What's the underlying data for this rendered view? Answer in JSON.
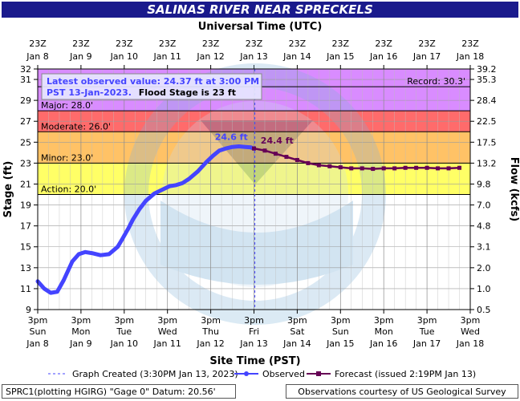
{
  "chart_data": {
    "type": "line",
    "title": "SALINAS RIVER NEAR SPRECKELS",
    "top_axis_label": "Universal Time (UTC)",
    "xlabel": "Site Time (PST)",
    "ylabel": "Stage (ft)",
    "y2label": "Flow (kcfs)",
    "ylim": [
      9,
      32
    ],
    "xlim_days": [
      0,
      10
    ],
    "grid": true,
    "legend_placement": "bottom",
    "y_ticks": [
      9,
      11,
      13,
      15,
      17,
      19,
      21,
      23,
      25,
      27,
      29,
      31,
      32
    ],
    "y_tick_labels": [
      "9",
      "11",
      "13",
      "15",
      "17",
      "19",
      "21",
      "23",
      "25",
      "27",
      "29",
      "31",
      "32"
    ],
    "flow_ticks": [
      {
        "stage": 9,
        "label": "0.5"
      },
      {
        "stage": 11,
        "label": "1.0"
      },
      {
        "stage": 13,
        "label": "2.0"
      },
      {
        "stage": 15,
        "label": "3.1"
      },
      {
        "stage": 17,
        "label": "4.8"
      },
      {
        "stage": 19,
        "label": "7.0"
      },
      {
        "stage": 21,
        "label": "9.8"
      },
      {
        "stage": 23,
        "label": "13.2"
      },
      {
        "stage": 25,
        "label": "17.5"
      },
      {
        "stage": 27,
        "label": "22.5"
      },
      {
        "stage": 29,
        "label": "28.4"
      },
      {
        "stage": 31,
        "label": "35.3"
      },
      {
        "stage": 32,
        "label": "39.2"
      }
    ],
    "bottom_ticks": [
      {
        "day": 0,
        "line1": "3pm",
        "line2": "Sun",
        "line3": "Jan 8"
      },
      {
        "day": 1,
        "line1": "3pm",
        "line2": "Mon",
        "line3": "Jan 9"
      },
      {
        "day": 2,
        "line1": "3pm",
        "line2": "Tue",
        "line3": "Jan 10"
      },
      {
        "day": 3,
        "line1": "3pm",
        "line2": "Wed",
        "line3": "Jan 11"
      },
      {
        "day": 4,
        "line1": "3pm",
        "line2": "Thu",
        "line3": "Jan 12"
      },
      {
        "day": 5,
        "line1": "3pm",
        "line2": "Fri",
        "line3": "Jan 13"
      },
      {
        "day": 6,
        "line1": "3pm",
        "line2": "Sat",
        "line3": "Jan 14"
      },
      {
        "day": 7,
        "line1": "3pm",
        "line2": "Sun",
        "line3": "Jan 15"
      },
      {
        "day": 8,
        "line1": "3pm",
        "line2": "Mon",
        "line3": "Jan 16"
      },
      {
        "day": 9,
        "line1": "3pm",
        "line2": "Tue",
        "line3": "Jan 17"
      },
      {
        "day": 10,
        "line1": "3pm",
        "line2": "Wed",
        "line3": "Jan 18"
      }
    ],
    "top_ticks": [
      {
        "day": 0,
        "line1": "23Z",
        "line2": "Jan 8"
      },
      {
        "day": 1,
        "line1": "23Z",
        "line2": "Jan 9"
      },
      {
        "day": 2,
        "line1": "23Z",
        "line2": "Jan 10"
      },
      {
        "day": 3,
        "line1": "23Z",
        "line2": "Jan 11"
      },
      {
        "day": 4,
        "line1": "23Z",
        "line2": "Jan 12"
      },
      {
        "day": 5,
        "line1": "23Z",
        "line2": "Jan 13"
      },
      {
        "day": 6,
        "line1": "23Z",
        "line2": "Jan 14"
      },
      {
        "day": 7,
        "line1": "23Z",
        "line2": "Jan 15"
      },
      {
        "day": 8,
        "line1": "23Z",
        "line2": "Jan 16"
      },
      {
        "day": 9,
        "line1": "23Z",
        "line2": "Jan 17"
      },
      {
        "day": 10,
        "line1": "23Z",
        "line2": "Jan 18"
      }
    ],
    "flood_bands": [
      {
        "name": "Action",
        "label": "Action: 20.0'",
        "from": 20,
        "to": 23,
        "color": "#ffff66"
      },
      {
        "name": "Minor",
        "label": "Minor: 23.0'",
        "from": 23,
        "to": 26,
        "color": "#ffc266"
      },
      {
        "name": "Moderate",
        "label": "Moderate: 26.0'",
        "from": 26,
        "to": 28,
        "color": "#ff6b6b"
      },
      {
        "name": "Major",
        "label": "Major: 28.0'",
        "from": 28,
        "to": 32,
        "color": "#d98cff"
      }
    ],
    "record": {
      "label": "Record: 30.3'",
      "value": 30.3
    },
    "info_box": {
      "line1": "Latest observed value: 24.37 ft at 3:00 PM",
      "line2_a": "PST 13-Jan-2023.",
      "line2_b": "Flood Stage is 23 ft"
    },
    "graph_created_day": 5.02,
    "annotations": [
      {
        "text": "24.6 ft",
        "day": 4.93,
        "value": 24.6,
        "color": "#4444ff"
      },
      {
        "text": "24.4 ft",
        "day": 5.08,
        "value": 24.4,
        "color": "#660055"
      }
    ],
    "series": [
      {
        "name": "Observed",
        "color": "#4444ff",
        "x": [
          0,
          0.15,
          0.3,
          0.45,
          0.6,
          0.8,
          0.95,
          1.1,
          1.25,
          1.45,
          1.65,
          1.85,
          1.95,
          2.1,
          2.2,
          2.35,
          2.5,
          2.7,
          2.9,
          3.05,
          3.2,
          3.35,
          3.5,
          3.7,
          3.9,
          4.05,
          4.2,
          4.35,
          4.5,
          4.65,
          4.8,
          4.93,
          5.0
        ],
        "values": [
          11.7,
          11.0,
          10.6,
          10.7,
          11.8,
          13.6,
          14.3,
          14.5,
          14.4,
          14.2,
          14.3,
          15.0,
          15.7,
          16.8,
          17.6,
          18.6,
          19.4,
          20.1,
          20.5,
          20.8,
          20.9,
          21.1,
          21.5,
          22.2,
          23.1,
          23.7,
          24.2,
          24.4,
          24.55,
          24.6,
          24.55,
          24.5,
          24.37
        ]
      },
      {
        "name": "Forecast (issued 2:19PM Jan 13)",
        "color": "#660055",
        "x": [
          5.0,
          5.25,
          5.5,
          5.75,
          6.0,
          6.25,
          6.5,
          6.75,
          7.0,
          7.25,
          7.5,
          7.75,
          8.0,
          8.25,
          8.5,
          8.75,
          9.0,
          9.25,
          9.5,
          9.75
        ],
        "values": [
          24.4,
          24.2,
          23.9,
          23.6,
          23.3,
          23.0,
          22.8,
          22.7,
          22.6,
          22.5,
          22.5,
          22.45,
          22.5,
          22.5,
          22.55,
          22.55,
          22.55,
          22.5,
          22.5,
          22.55
        ]
      }
    ]
  },
  "legend": {
    "graph_created": "Graph Created (3:30PM Jan 13, 2023)",
    "observed": "Observed",
    "forecast": "Forecast (issued 2:19PM Jan 13)"
  },
  "footer": {
    "left": "SPRC1(plotting HGIRG) \"Gage 0\" Datum: 20.56'",
    "right": "Observations courtesy of US Geological Survey"
  },
  "colors": {
    "header_bg": "#1a1a8c",
    "plot_bg": "#ffffff",
    "observed": "#4444ff",
    "forecast": "#660055"
  }
}
